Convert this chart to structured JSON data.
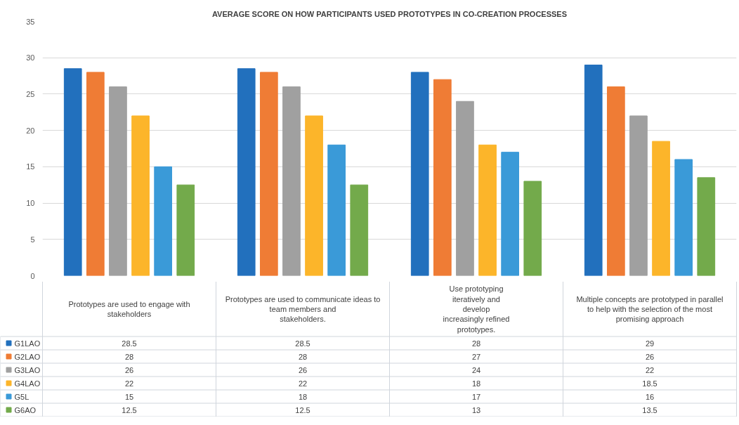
{
  "chart_data": {
    "type": "bar",
    "title": "AVERAGE SCORE ON HOW PARTICIPANTS USED PROTOTYPES IN CO-CREATION PROCESSES",
    "categories": [
      "Prototypes are used to engage with\nstakeholders",
      "Prototypes are used to communicate ideas to\nteam members and\nstakeholders.",
      "Use prototyping\niteratively and\ndevelop\nincreasingly refined\nprototypes.",
      "Multiple concepts are prototyped in parallel\nto help with the selection of the most\npromising approach"
    ],
    "series": [
      {
        "name": "G1LAO",
        "color": "#2270bd",
        "values": [
          28.5,
          28.5,
          28,
          29
        ]
      },
      {
        "name": "G2LAO",
        "color": "#ef7c35",
        "values": [
          28,
          28,
          27,
          26
        ]
      },
      {
        "name": "G3LAO",
        "color": "#a0a0a0",
        "values": [
          26,
          26,
          24,
          22
        ]
      },
      {
        "name": "G4LAO",
        "color": "#fcb52a",
        "values": [
          22,
          22,
          18,
          18.5
        ]
      },
      {
        "name": "G5L",
        "color": "#3a9ad8",
        "values": [
          15,
          18,
          17,
          16
        ]
      },
      {
        "name": "G6AO",
        "color": "#73aa4b",
        "values": [
          12.5,
          12.5,
          13,
          13.5
        ]
      }
    ],
    "ylim": [
      0,
      35
    ],
    "yticks": [
      0,
      5,
      10,
      15,
      20,
      25,
      30,
      35
    ],
    "grid": "y",
    "legend": "bottom",
    "data_labels": true
  }
}
